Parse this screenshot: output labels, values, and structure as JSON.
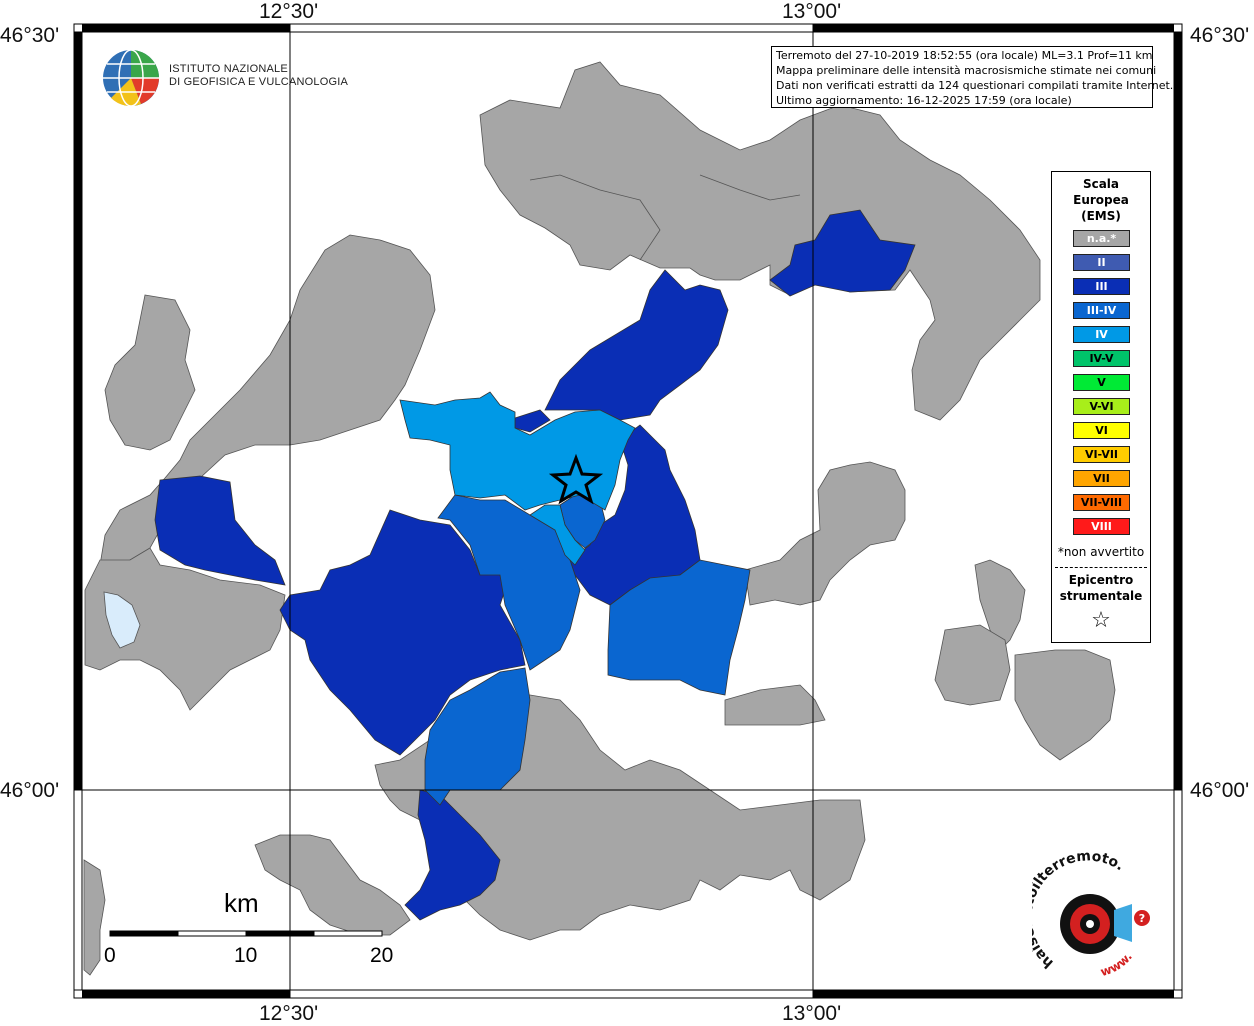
{
  "coordinates": {
    "top_left_lat": "46°30'",
    "top_right_lat": "46°30'",
    "mid_left_lat": "46°00'",
    "mid_right_lat": "46°00'",
    "top_lon_1": "12°30'",
    "top_lon_2": "13°00'",
    "bottom_lon_1": "12°30'",
    "bottom_lon_2": "13°00'"
  },
  "info_box": {
    "line1": "Terremoto del 27-10-2019 18:52:55 (ora locale) ML=3.1 Prof=11 km",
    "line2": "Mappa preliminare delle intensità macrosismiche stimate nei comuni",
    "line3": "Dati non verificati estratti da 124 questionari compilati tramite Internet.",
    "line4": "Ultimo aggiornamento: 16-12-2025 17:59 (ora locale)"
  },
  "logo": {
    "line1": "ISTITUTO NAZIONALE",
    "line2": "DI GEOFISICA E VULCANOLOGIA"
  },
  "legend": {
    "title1": "Scala",
    "title2": "Europea",
    "title3": "(EMS)",
    "items": [
      {
        "label": "n.a.*",
        "color": "#a6a6a6",
        "text_color": "#ffffff"
      },
      {
        "label": "II",
        "color": "#3f5bb1",
        "text_color": "#ffffff"
      },
      {
        "label": "III",
        "color": "#0a2eb5",
        "text_color": "#ffffff"
      },
      {
        "label": "III-IV",
        "color": "#0a66d0",
        "text_color": "#ffffff"
      },
      {
        "label": "IV",
        "color": "#0099e6",
        "text_color": "#ffffff"
      },
      {
        "label": "IV-V",
        "color": "#00c46a",
        "text_color": "#000000"
      },
      {
        "label": "V",
        "color": "#00ea35",
        "text_color": "#000000"
      },
      {
        "label": "V-VI",
        "color": "#a8ee1a",
        "text_color": "#000000"
      },
      {
        "label": "VI",
        "color": "#ffff00",
        "text_color": "#000000"
      },
      {
        "label": "VI-VII",
        "color": "#ffcc00",
        "text_color": "#000000"
      },
      {
        "label": "VII",
        "color": "#ffa500",
        "text_color": "#000000"
      },
      {
        "label": "VII-VIII",
        "color": "#ff6a00",
        "text_color": "#000000"
      },
      {
        "label": "VIII",
        "color": "#ff1a1a",
        "text_color": "#ffffff"
      }
    ],
    "note": "*non avvertito",
    "epicenter1": "Epicentro",
    "epicenter2": "strumentale",
    "star": "☆"
  },
  "scale_bar": {
    "unit": "km",
    "ticks": [
      "0",
      "10",
      "20"
    ]
  },
  "hsl_logo": {
    "text": "haisentitoilterremoto.it",
    "www": "www."
  },
  "colors": {
    "na": "#a6a6a6",
    "ii": "#3f5bb1",
    "iii": "#0a2eb5",
    "iii_iv": "#0a66d0",
    "iv": "#0099e6",
    "lake": "#d9ecfb"
  }
}
